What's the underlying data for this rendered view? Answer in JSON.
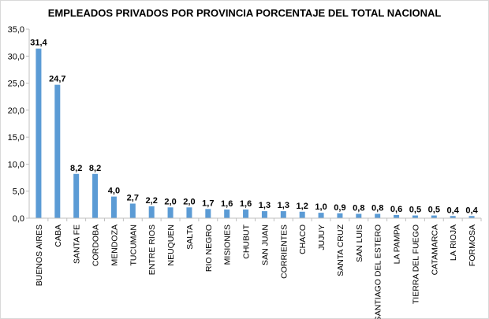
{
  "chart_data": {
    "type": "bar",
    "title": "EMPLEADOS PRIVADOS POR PROVINCIA PORCENTAJE DEL TOTAL NACIONAL",
    "xlabel": "",
    "ylabel": "",
    "ylim": [
      0,
      35
    ],
    "yticks": [
      "0,0",
      "5,0",
      "10,0",
      "15,0",
      "20,0",
      "25,0",
      "30,0",
      "35,0"
    ],
    "grid": false,
    "bar_color": "#5b9bd5",
    "categories": [
      "BUENOS AIRES",
      "CABA",
      "SANTA FE",
      "CORDOBA",
      "MENDOZA",
      "TUCUMAN",
      "ENTRE RIOS",
      "NEUQUEN",
      "SALTA",
      "RIO NEGRO",
      "MISIONES",
      "CHUBUT",
      "SAN JUAN",
      "CORRIENTES",
      "CHACO",
      "JUJUY",
      "SANTA CRUZ",
      "SAN LUIS",
      "SANTIAGO DEL ESTERO",
      "LA PAMPA",
      "TIERRA DEL FUEGO",
      "CATAMARCA",
      "LA RIOJA",
      "FORMOSA"
    ],
    "values": [
      31.4,
      24.7,
      8.2,
      8.2,
      4.0,
      2.7,
      2.2,
      2.0,
      2.0,
      1.7,
      1.6,
      1.6,
      1.3,
      1.3,
      1.2,
      1.0,
      0.9,
      0.8,
      0.8,
      0.6,
      0.5,
      0.5,
      0.4,
      0.4
    ],
    "data_labels": [
      "31,4",
      "24,7",
      "8,2",
      "8,2",
      "4,0",
      "2,7",
      "2,2",
      "2,0",
      "2,0",
      "1,7",
      "1,6",
      "1,6",
      "1,3",
      "1,3",
      "1,2",
      "1,0",
      "0,9",
      "0,8",
      "0,8",
      "0,6",
      "0,5",
      "0,5",
      "0,4",
      "0,4"
    ]
  }
}
